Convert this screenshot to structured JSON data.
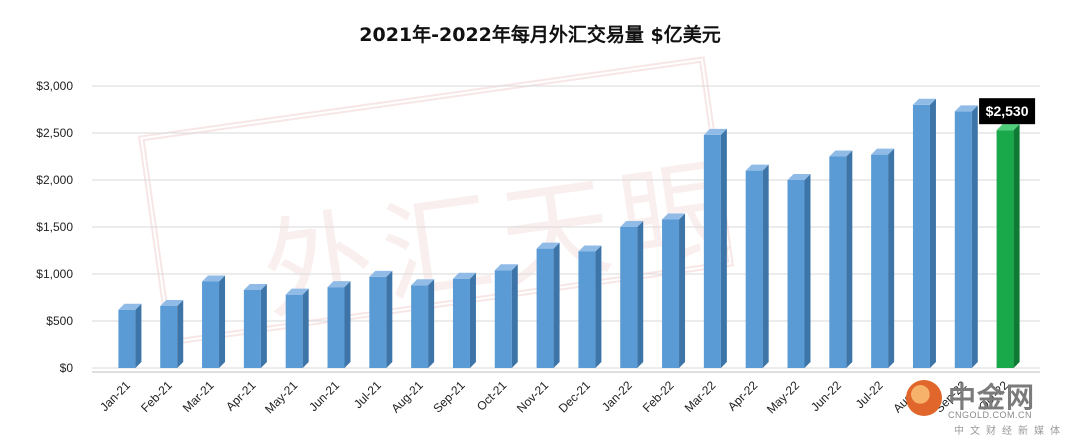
{
  "chart_data": {
    "type": "bar",
    "title": "2021年-2022年每月外汇交易量 $亿美元",
    "categories": [
      "Jan-21",
      "Feb-21",
      "Mar-21",
      "Apr-21",
      "May-21",
      "Jun-21",
      "Jul-21",
      "Aug-21",
      "Sep-21",
      "Oct-21",
      "Nov-21",
      "Dec-21",
      "Jan-22",
      "Feb-22",
      "Mar-22",
      "Apr-22",
      "May-22",
      "Jun-22",
      "Jul-22",
      "Aug-22",
      "Sep-22",
      "Oct-22"
    ],
    "values": [
      620,
      660,
      920,
      830,
      780,
      860,
      970,
      880,
      950,
      1040,
      1270,
      1240,
      1500,
      1580,
      2480,
      2100,
      2000,
      2250,
      2270,
      2800,
      2730,
      2530
    ],
    "y_ticks": [
      "$0",
      "$500",
      "$1,000",
      "$1,500",
      "$2,000",
      "$2,500",
      "$3,000"
    ],
    "ylim": [
      0,
      3000
    ],
    "grid": true,
    "highlight": {
      "index": 21,
      "label": "$2,530"
    },
    "colors": {
      "bar": "#5b9bd5",
      "bar_side": "#3e75a8",
      "bar_top": "#8fbbe6",
      "highlight": "#19a84a",
      "highlight_side": "#0f7a33",
      "highlight_top": "#4fcf79",
      "grid": "#d9d9d9"
    }
  },
  "watermark": {
    "name": "中金网",
    "url": "CNGOLD.COM.CN",
    "sub": "中文财经新媒体",
    "stamp": "外汇天眼"
  }
}
